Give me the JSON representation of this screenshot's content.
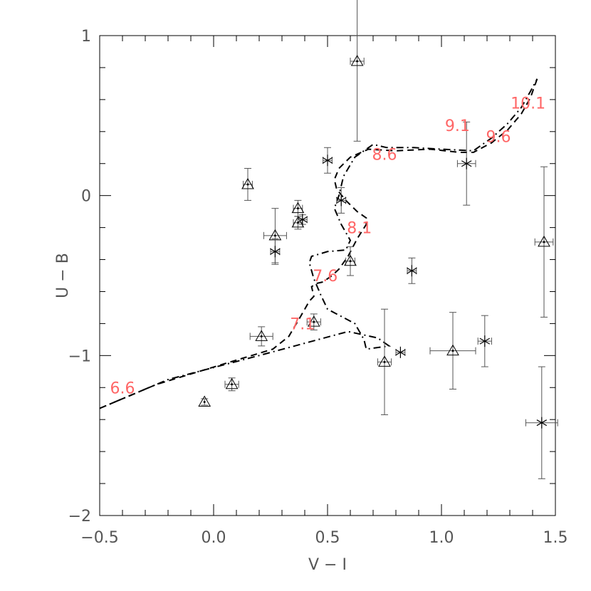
{
  "chart_data": {
    "type": "scatter",
    "title": "",
    "xlabel": "V − I",
    "ylabel": "U − B",
    "xlim": [
      -0.5,
      1.5
    ],
    "ylim": [
      -2.0,
      1.0
    ],
    "y_inverted": false,
    "grid": false,
    "x_ticks": [
      -0.5,
      0.0,
      0.5,
      1.0,
      1.5
    ],
    "x_tick_labels": [
      "−0.5",
      "0.0",
      "0.5",
      "1.0",
      "1.5"
    ],
    "y_ticks": [
      -2,
      -1,
      0,
      1
    ],
    "y_tick_labels": [
      "−2",
      "−1",
      "0",
      "1"
    ],
    "label_color": "#ff6666",
    "axis_color": "#000000",
    "text_color": "#555555",
    "series": [
      {
        "marker": "triangle",
        "points": [
          {
            "x": -0.04,
            "y": -1.29,
            "ex": 0.0,
            "ey": 0.02
          },
          {
            "x": 0.08,
            "y": -1.18,
            "ex": 0.03,
            "ey": 0.04
          },
          {
            "x": 0.15,
            "y": 0.07,
            "ex": 0.02,
            "ey": 0.1
          },
          {
            "x": 0.21,
            "y": -0.88,
            "ex": 0.05,
            "ey": 0.06
          },
          {
            "x": 0.27,
            "y": -0.25,
            "ex": 0.05,
            "ey": 0.17
          },
          {
            "x": 0.37,
            "y": -0.08,
            "ex": 0.02,
            "ey": 0.05
          },
          {
            "x": 0.37,
            "y": -0.17,
            "ex": 0.02,
            "ey": 0.04
          },
          {
            "x": 0.44,
            "y": -0.79,
            "ex": 0.03,
            "ey": 0.05
          },
          {
            "x": 0.6,
            "y": -0.41,
            "ex": 0.02,
            "ey": 0.09
          },
          {
            "x": 0.63,
            "y": 0.84,
            "ex": 0.03,
            "ey": 0.5
          },
          {
            "x": 0.75,
            "y": -1.04,
            "ex": 0.03,
            "ey": 0.33
          },
          {
            "x": 1.05,
            "y": -0.97,
            "ex": 0.1,
            "ey": 0.24
          },
          {
            "x": 1.45,
            "y": -0.29,
            "ex": 0.04,
            "ey": 0.47
          }
        ]
      },
      {
        "marker": "asterisk",
        "points": [
          {
            "x": 0.27,
            "y": -0.35,
            "ex": 0.02,
            "ey": 0.08
          },
          {
            "x": 0.39,
            "y": -0.15,
            "ex": 0.02,
            "ey": 0.03
          },
          {
            "x": 0.5,
            "y": 0.22,
            "ex": 0.02,
            "ey": 0.08
          },
          {
            "x": 0.56,
            "y": -0.03,
            "ex": 0.02,
            "ey": 0.08
          },
          {
            "x": 0.82,
            "y": -0.98,
            "ex": 0.02,
            "ey": 0.0
          },
          {
            "x": 0.87,
            "y": -0.47,
            "ex": 0.02,
            "ey": 0.08
          },
          {
            "x": 1.11,
            "y": 0.2,
            "ex": 0.04,
            "ey": 0.26
          },
          {
            "x": 1.19,
            "y": -0.91,
            "ex": 0.03,
            "ey": 0.16
          },
          {
            "x": 1.44,
            "y": -1.42,
            "ex": 0.07,
            "ey": 0.35
          }
        ]
      },
      {
        "style": "dashed",
        "points": [
          [
            -0.5,
            -1.33
          ],
          [
            -0.25,
            -1.18
          ],
          [
            0.05,
            -1.05
          ],
          [
            0.26,
            -0.96
          ],
          [
            0.33,
            -0.88
          ],
          [
            0.38,
            -0.76
          ],
          [
            0.42,
            -0.66
          ],
          [
            0.44,
            -0.63
          ],
          [
            0.43,
            -0.57
          ],
          [
            0.45,
            -0.55
          ],
          [
            0.48,
            -0.54
          ],
          [
            0.52,
            -0.5
          ],
          [
            0.55,
            -0.46
          ],
          [
            0.59,
            -0.38
          ],
          [
            0.63,
            -0.27
          ],
          [
            0.67,
            -0.18
          ],
          [
            0.67,
            -0.14
          ],
          [
            0.63,
            -0.1
          ],
          [
            0.58,
            -0.03
          ],
          [
            0.54,
            0.04
          ],
          [
            0.53,
            0.1
          ],
          [
            0.55,
            0.17
          ],
          [
            0.6,
            0.24
          ],
          [
            0.68,
            0.29
          ],
          [
            0.8,
            0.28
          ],
          [
            0.95,
            0.29
          ],
          [
            1.08,
            0.27
          ],
          [
            1.14,
            0.27
          ],
          [
            1.22,
            0.33
          ],
          [
            1.29,
            0.41
          ],
          [
            1.35,
            0.51
          ],
          [
            1.39,
            0.61
          ],
          [
            1.42,
            0.73
          ]
        ]
      },
      {
        "style": "dash-dot",
        "points": [
          [
            -0.5,
            -1.33
          ],
          [
            -0.2,
            -1.15
          ],
          [
            0.2,
            -1.0
          ],
          [
            0.59,
            -0.85
          ],
          [
            0.72,
            -0.89
          ],
          [
            0.77,
            -0.94
          ],
          [
            0.67,
            -0.96
          ],
          [
            0.66,
            -0.9
          ],
          [
            0.62,
            -0.8
          ],
          [
            0.5,
            -0.71
          ],
          [
            0.47,
            -0.62
          ],
          [
            0.44,
            -0.52
          ],
          [
            0.42,
            -0.42
          ],
          [
            0.43,
            -0.38
          ],
          [
            0.5,
            -0.35
          ],
          [
            0.58,
            -0.34
          ],
          [
            0.6,
            -0.28
          ],
          [
            0.56,
            -0.18
          ],
          [
            0.53,
            -0.08
          ],
          [
            0.55,
            0.0
          ],
          [
            0.57,
            0.12
          ],
          [
            0.62,
            0.24
          ],
          [
            0.7,
            0.32
          ],
          [
            0.76,
            0.3
          ],
          [
            0.88,
            0.3
          ],
          [
            1.0,
            0.29
          ],
          [
            1.14,
            0.28
          ],
          [
            1.22,
            0.36
          ],
          [
            1.29,
            0.45
          ],
          [
            1.35,
            0.55
          ],
          [
            1.39,
            0.65
          ],
          [
            1.42,
            0.73
          ]
        ]
      }
    ],
    "annotations": [
      {
        "text": "6.6",
        "x": -0.4,
        "y": -1.2
      },
      {
        "text": "7.1",
        "x": 0.39,
        "y": -0.8
      },
      {
        "text": "7.6",
        "x": 0.49,
        "y": -0.5
      },
      {
        "text": "8.1",
        "x": 0.64,
        "y": -0.2
      },
      {
        "text": "8.6",
        "x": 0.75,
        "y": 0.26
      },
      {
        "text": "9.1",
        "x": 1.07,
        "y": 0.44
      },
      {
        "text": "9.6",
        "x": 1.25,
        "y": 0.37
      },
      {
        "text": "10.1",
        "x": 1.38,
        "y": 0.58
      }
    ]
  }
}
